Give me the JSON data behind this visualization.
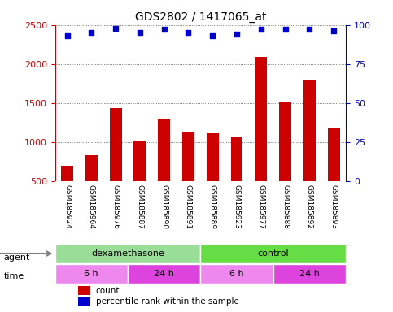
{
  "title": "GDS2802 / 1417065_at",
  "samples": [
    "GSM185924",
    "GSM185964",
    "GSM185976",
    "GSM185887",
    "GSM185890",
    "GSM185891",
    "GSM185889",
    "GSM185923",
    "GSM185977",
    "GSM185888",
    "GSM185892",
    "GSM185893"
  ],
  "counts": [
    700,
    830,
    1430,
    1010,
    1300,
    1130,
    1110,
    1060,
    2090,
    1510,
    1800,
    1170
  ],
  "percentile_ranks": [
    93,
    95,
    98,
    95,
    97,
    95,
    93,
    94,
    97,
    97,
    97,
    96
  ],
  "ylim_left": [
    500,
    2500
  ],
  "ylim_right": [
    0,
    100
  ],
  "yticks_left": [
    500,
    1000,
    1500,
    2000,
    2500
  ],
  "yticks_right": [
    0,
    25,
    50,
    75,
    100
  ],
  "bar_color": "#cc0000",
  "dot_color": "#0000cc",
  "agent_colors": [
    "#90ee90",
    "#90ee90",
    "#90ee90",
    "#90ee90",
    "#90ee90",
    "#90ee90",
    "#66dd66",
    "#66dd66",
    "#66dd66",
    "#66dd66",
    "#66dd66",
    "#66dd66"
  ],
  "agent_labels": [
    {
      "label": "dexamethasone",
      "start": 0,
      "end": 6
    },
    {
      "label": "control",
      "start": 6,
      "end": 12
    }
  ],
  "agent_color_left": "#aaddaa",
  "agent_color_right": "#66dd44",
  "time_labels": [
    {
      "label": "6 h",
      "start": 0,
      "end": 3,
      "color": "#ee88ee"
    },
    {
      "label": "24 h",
      "start": 3,
      "end": 6,
      "color": "#dd44dd"
    },
    {
      "label": "6 h",
      "start": 6,
      "end": 9,
      "color": "#ee88ee"
    },
    {
      "label": "24 h",
      "start": 9,
      "end": 12,
      "color": "#dd44dd"
    }
  ],
  "bg_color": "#ffffff",
  "sample_bg": "#dddddd",
  "grid_color": "#333333"
}
